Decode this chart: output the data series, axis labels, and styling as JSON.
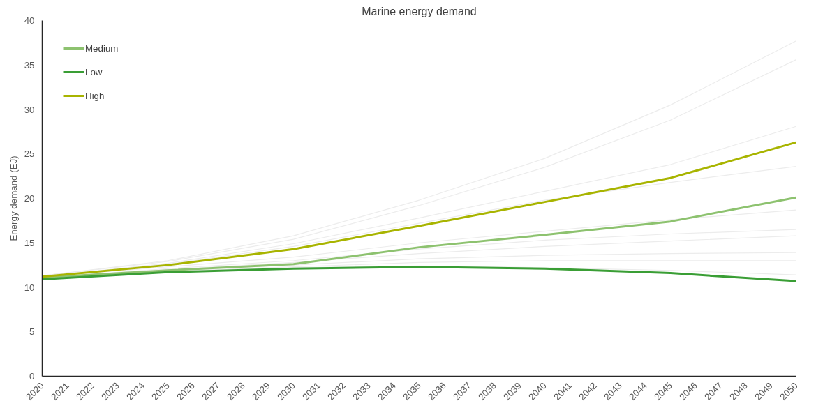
{
  "chart_data": {
    "type": "line",
    "title": "Marine energy demand",
    "ylabel": "Energy demand (EJ)",
    "x": [
      2020,
      2025,
      2030,
      2035,
      2040,
      2045,
      2050
    ],
    "xlim": [
      2020,
      2050
    ],
    "xticks": [
      2020,
      2021,
      2022,
      2023,
      2024,
      2025,
      2026,
      2027,
      2028,
      2029,
      2030,
      2031,
      2032,
      2033,
      2034,
      2035,
      2036,
      2037,
      2038,
      2039,
      2040,
      2041,
      2042,
      2043,
      2044,
      2045,
      2046,
      2047,
      2048,
      2049,
      2050
    ],
    "ylim": [
      0,
      40
    ],
    "yticks": [
      0,
      5,
      10,
      15,
      20,
      25,
      30,
      35,
      40
    ],
    "grid": false,
    "legend": "top left",
    "line_style": "solid",
    "marker": "none",
    "series": [
      {
        "color": "#ececec",
        "values": [
          11.3,
          13.0,
          15.8,
          19.8,
          24.5,
          30.5,
          37.7
        ]
      },
      {
        "color": "#ececec",
        "values": [
          11.3,
          12.9,
          15.4,
          19.2,
          23.5,
          28.8,
          35.6
        ]
      },
      {
        "color": "#ececec",
        "values": [
          11.2,
          12.7,
          14.9,
          17.8,
          20.8,
          23.8,
          28.1
        ]
      },
      {
        "color": "#ececec",
        "values": [
          11.2,
          12.6,
          14.6,
          17.2,
          19.8,
          21.8,
          23.6
        ]
      },
      {
        "color": "#ececec",
        "values": [
          11.2,
          12.3,
          13.4,
          15.0,
          16.3,
          17.6,
          18.7
        ]
      },
      {
        "color": "#ececec",
        "values": [
          11.1,
          12.1,
          13.0,
          14.3,
          15.3,
          16.0,
          16.5
        ]
      },
      {
        "color": "#ececec",
        "values": [
          11.1,
          12.0,
          12.8,
          13.8,
          14.6,
          15.2,
          15.8
        ]
      },
      {
        "color": "#ececec",
        "values": [
          11.1,
          11.9,
          12.5,
          13.2,
          13.6,
          13.8,
          13.9
        ]
      },
      {
        "color": "#ececec",
        "values": [
          11.0,
          11.8,
          12.3,
          12.8,
          13.0,
          13.0,
          13.0
        ]
      },
      {
        "color": "#ececec",
        "values": [
          11.0,
          11.8,
          12.2,
          12.4,
          12.2,
          11.9,
          11.4
        ]
      },
      {
        "name": "Medium",
        "color": "#8dc26f",
        "values": [
          11.1,
          11.9,
          12.6,
          14.5,
          15.9,
          17.4,
          20.1
        ]
      },
      {
        "name": "Low",
        "color": "#3a9e35",
        "values": [
          10.9,
          11.7,
          12.1,
          12.3,
          12.1,
          11.6,
          10.7
        ]
      },
      {
        "name": "High",
        "color": "#a8b400",
        "values": [
          11.2,
          12.5,
          14.3,
          16.9,
          19.6,
          22.3,
          26.3
        ]
      }
    ]
  }
}
